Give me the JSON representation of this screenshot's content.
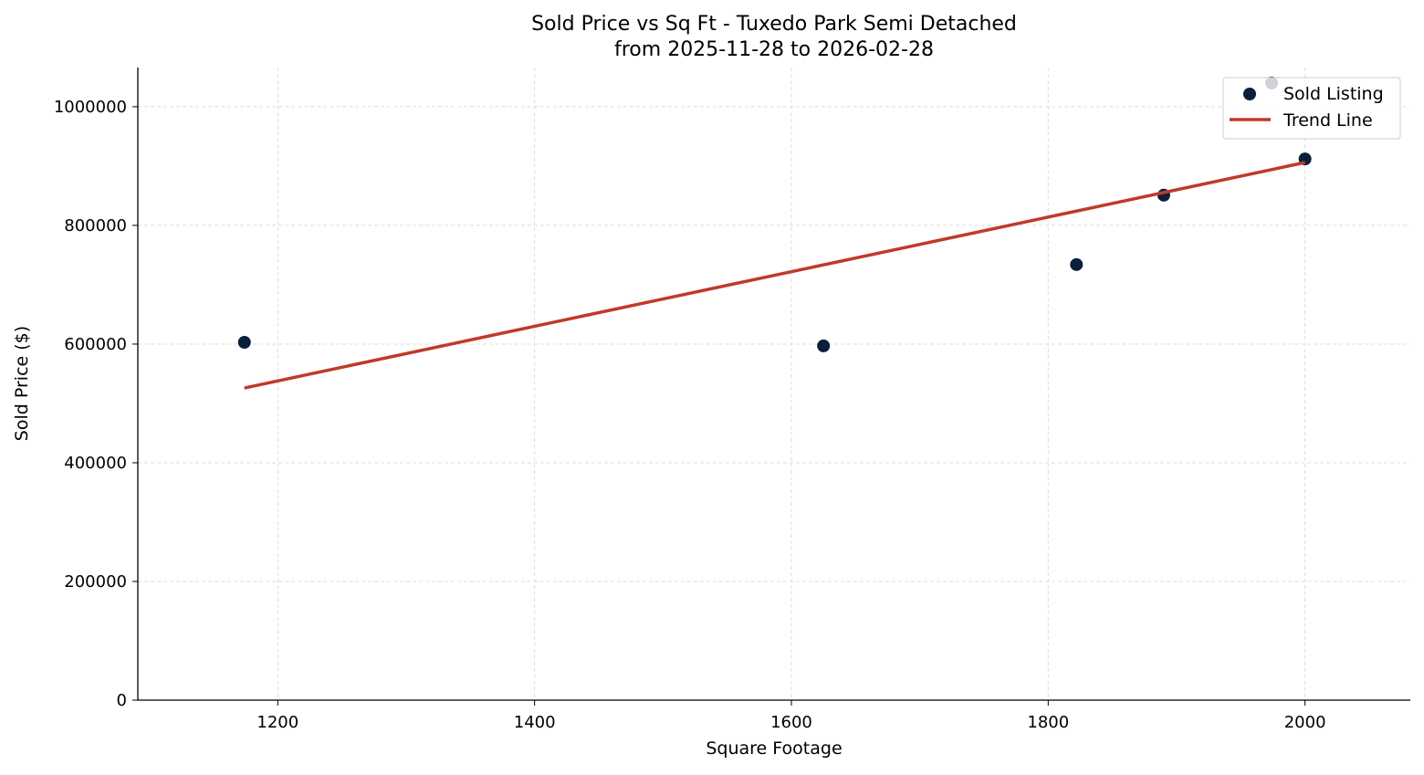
{
  "chart_data": {
    "type": "scatter",
    "title": "Sold Price vs Sq Ft - Tuxedo Park Semi Detached",
    "subtitle": "from 2025-11-28 to 2026-02-28",
    "xlabel": "Square Footage",
    "ylabel": "Sold Price ($)",
    "xlim": [
      1091,
      2082
    ],
    "ylim": [
      0,
      1066000
    ],
    "xticks": [
      1200,
      1400,
      1600,
      1800,
      2000
    ],
    "yticks": [
      0,
      200000,
      400000,
      600000,
      800000,
      1000000
    ],
    "grid": true,
    "legend_position": "top-right",
    "series": [
      {
        "name": "Sold Listing",
        "kind": "scatter",
        "color": "#0b1f3a",
        "x": [
          1174,
          1625,
          1822,
          1890,
          2000,
          1974
        ],
        "y": [
          603000,
          597000,
          734000,
          851000,
          912000,
          1040000
        ]
      },
      {
        "name": "Trend Line",
        "kind": "line",
        "color": "#c0392b",
        "x": [
          1174,
          2000
        ],
        "y": [
          526000,
          906000
        ]
      }
    ]
  }
}
